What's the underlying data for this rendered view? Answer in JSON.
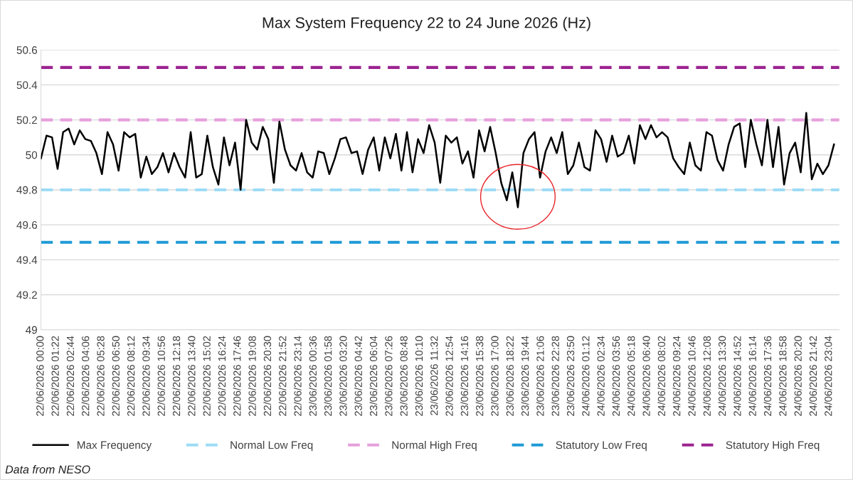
{
  "chart_data": {
    "type": "line",
    "title": "Max System Frequency 22 to 24 June 2026 (Hz)",
    "x": [
      "2026-06-22T00:00",
      "2026-06-22T00:30",
      "2026-06-22T01:00",
      "2026-06-22T01:30",
      "2026-06-22T02:00",
      "2026-06-22T02:30",
      "2026-06-22T03:00",
      "2026-06-22T03:30",
      "2026-06-22T04:00",
      "2026-06-22T04:30",
      "2026-06-22T05:00",
      "2026-06-22T05:30",
      "2026-06-22T06:00",
      "2026-06-22T06:30",
      "2026-06-22T07:00",
      "2026-06-22T07:30",
      "2026-06-22T08:00",
      "2026-06-22T08:30",
      "2026-06-22T09:00",
      "2026-06-22T09:30",
      "2026-06-22T10:00",
      "2026-06-22T10:30",
      "2026-06-22T11:00",
      "2026-06-22T11:30",
      "2026-06-22T12:00",
      "2026-06-22T12:30",
      "2026-06-22T13:00",
      "2026-06-22T13:30",
      "2026-06-22T14:00",
      "2026-06-22T14:30",
      "2026-06-22T15:00",
      "2026-06-22T15:30",
      "2026-06-22T16:00",
      "2026-06-22T16:30",
      "2026-06-22T17:00",
      "2026-06-22T17:30",
      "2026-06-22T18:00",
      "2026-06-22T18:30",
      "2026-06-22T19:00",
      "2026-06-22T19:30",
      "2026-06-22T20:00",
      "2026-06-22T20:30",
      "2026-06-22T21:00",
      "2026-06-22T21:30",
      "2026-06-22T22:00",
      "2026-06-22T22:30",
      "2026-06-22T23:00",
      "2026-06-22T23:30",
      "2026-06-23T00:00",
      "2026-06-23T00:30",
      "2026-06-23T01:00",
      "2026-06-23T01:30",
      "2026-06-23T02:00",
      "2026-06-23T02:30",
      "2026-06-23T03:00",
      "2026-06-23T03:30",
      "2026-06-23T04:00",
      "2026-06-23T04:30",
      "2026-06-23T05:00",
      "2026-06-23T05:30",
      "2026-06-23T06:00",
      "2026-06-23T06:30",
      "2026-06-23T07:00",
      "2026-06-23T07:30",
      "2026-06-23T08:00",
      "2026-06-23T08:30",
      "2026-06-23T09:00",
      "2026-06-23T09:30",
      "2026-06-23T10:00",
      "2026-06-23T10:30",
      "2026-06-23T11:00",
      "2026-06-23T11:30",
      "2026-06-23T12:00",
      "2026-06-23T12:30",
      "2026-06-23T13:00",
      "2026-06-23T13:30",
      "2026-06-23T14:00",
      "2026-06-23T14:30",
      "2026-06-23T15:00",
      "2026-06-23T15:30",
      "2026-06-23T16:00",
      "2026-06-23T16:30",
      "2026-06-23T17:00",
      "2026-06-23T17:30",
      "2026-06-23T18:00",
      "2026-06-23T18:30",
      "2026-06-23T19:00",
      "2026-06-23T19:30",
      "2026-06-23T20:00",
      "2026-06-23T20:30",
      "2026-06-23T21:00",
      "2026-06-23T21:30",
      "2026-06-23T22:00",
      "2026-06-23T22:30",
      "2026-06-23T23:00",
      "2026-06-23T23:30",
      "2026-06-24T00:00",
      "2026-06-24T00:30",
      "2026-06-24T01:00",
      "2026-06-24T01:30",
      "2026-06-24T02:00",
      "2026-06-24T02:30",
      "2026-06-24T03:00",
      "2026-06-24T03:30",
      "2026-06-24T04:00",
      "2026-06-24T04:30",
      "2026-06-24T05:00",
      "2026-06-24T05:30",
      "2026-06-24T06:00",
      "2026-06-24T06:30",
      "2026-06-24T07:00",
      "2026-06-24T07:30",
      "2026-06-24T08:00",
      "2026-06-24T08:30",
      "2026-06-24T09:00",
      "2026-06-24T09:30",
      "2026-06-24T10:00",
      "2026-06-24T10:30",
      "2026-06-24T11:00",
      "2026-06-24T11:30",
      "2026-06-24T12:00",
      "2026-06-24T12:30",
      "2026-06-24T13:00",
      "2026-06-24T13:30",
      "2026-06-24T14:00",
      "2026-06-24T14:30",
      "2026-06-24T15:00",
      "2026-06-24T15:30",
      "2026-06-24T16:00",
      "2026-06-24T16:30",
      "2026-06-24T17:00",
      "2026-06-24T17:30",
      "2026-06-24T18:00",
      "2026-06-24T18:30",
      "2026-06-24T19:00",
      "2026-06-24T19:30",
      "2026-06-24T20:00",
      "2026-06-24T20:30",
      "2026-06-24T21:00",
      "2026-06-24T21:30",
      "2026-06-24T22:00",
      "2026-06-24T22:30",
      "2026-06-24T23:00",
      "2026-06-24T23:30"
    ],
    "series": [
      {
        "name": "Max Frequency",
        "color": "#000000",
        "values": [
          49.98,
          50.11,
          50.1,
          49.92,
          50.13,
          50.15,
          50.06,
          50.14,
          50.09,
          50.08,
          50.01,
          49.89,
          50.13,
          50.06,
          49.91,
          50.13,
          50.1,
          50.12,
          49.87,
          49.99,
          49.89,
          49.93,
          50.01,
          49.9,
          50.01,
          49.93,
          49.87,
          50.13,
          49.87,
          49.89,
          50.11,
          49.93,
          49.83,
          50.1,
          49.94,
          50.07,
          49.8,
          50.2,
          50.07,
          50.03,
          50.16,
          50.09,
          49.84,
          50.19,
          50.03,
          49.94,
          49.91,
          50.01,
          49.9,
          49.87,
          50.02,
          50.01,
          49.89,
          49.98,
          50.09,
          50.1,
          50.01,
          50.02,
          49.89,
          50.03,
          50.1,
          49.91,
          50.1,
          49.98,
          50.12,
          49.91,
          50.13,
          49.9,
          50.09,
          50.01,
          50.17,
          50.07,
          49.84,
          50.11,
          50.07,
          50.1,
          49.95,
          50.02,
          49.87,
          50.14,
          50.02,
          50.16,
          50.01,
          49.84,
          49.74,
          49.9,
          49.7,
          50.01,
          50.09,
          50.13,
          49.87,
          50.02,
          50.1,
          50.01,
          50.13,
          49.89,
          49.94,
          50.07,
          49.93,
          49.91,
          50.14,
          50.09,
          49.96,
          50.11,
          49.99,
          50.01,
          50.11,
          49.95,
          50.17,
          50.09,
          50.17,
          50.1,
          50.13,
          50.1,
          49.98,
          49.93,
          49.89,
          50.07,
          49.94,
          49.91,
          50.13,
          50.11,
          49.97,
          49.91,
          50.06,
          50.16,
          50.18,
          49.93,
          50.2,
          50.06,
          49.94,
          50.2,
          49.93,
          50.16,
          49.83,
          50.01,
          50.07,
          49.9,
          50.24,
          49.86,
          49.95,
          49.89,
          49.94,
          50.06
        ]
      }
    ],
    "ref_lines": [
      {
        "axis": "y",
        "value": 49.8,
        "label": "Normal Low Freq",
        "color": "#9ddcf5",
        "line_style": "dashed"
      },
      {
        "axis": "y",
        "value": 50.2,
        "label": "Normal High Freq",
        "color": "#e6a0dc",
        "line_style": "dashed"
      },
      {
        "axis": "y",
        "value": 49.5,
        "label": "Statutory Low Freq",
        "color": "#1f9ad6",
        "line_style": "dashed"
      },
      {
        "axis": "y",
        "value": 50.5,
        "label": "Statutory High Freq",
        "color": "#9c2391",
        "line_style": "dashed"
      }
    ],
    "ylim": [
      49,
      50.6
    ],
    "yticks": [
      49,
      49.2,
      49.4,
      49.6,
      49.8,
      50,
      50.2,
      50.4,
      50.6
    ],
    "xlim": [
      "2026-06-22T00:00",
      "2026-06-24T23:59"
    ],
    "xticks": [
      {
        "value": "2026-06-22T00:00",
        "label": "22/06/2026 00:00"
      },
      {
        "value": "2026-06-22T01:22",
        "label": "22/06/2026 01:22"
      },
      {
        "value": "2026-06-22T02:44",
        "label": "22/06/2026 02:44"
      },
      {
        "value": "2026-06-22T04:06",
        "label": "22/06/2026 04:06"
      },
      {
        "value": "2026-06-22T05:28",
        "label": "22/06/2026 05:28"
      },
      {
        "value": "2026-06-22T06:50",
        "label": "22/06/2026 06:50"
      },
      {
        "value": "2026-06-22T08:12",
        "label": "22/06/2026 08:12"
      },
      {
        "value": "2026-06-22T09:34",
        "label": "22/06/2026 09:34"
      },
      {
        "value": "2026-06-22T10:56",
        "label": "22/06/2026 10:56"
      },
      {
        "value": "2026-06-22T12:18",
        "label": "22/06/2026 12:18"
      },
      {
        "value": "2026-06-22T13:40",
        "label": "22/06/2026 13:40"
      },
      {
        "value": "2026-06-22T15:02",
        "label": "22/06/2026 15:02"
      },
      {
        "value": "2026-06-22T16:24",
        "label": "22/06/2026 16:24"
      },
      {
        "value": "2026-06-22T17:46",
        "label": "22/06/2026 17:46"
      },
      {
        "value": "2026-06-22T19:08",
        "label": "22/06/2026 19:08"
      },
      {
        "value": "2026-06-22T20:30",
        "label": "22/06/2026 20:30"
      },
      {
        "value": "2026-06-22T21:52",
        "label": "22/06/2026 21:52"
      },
      {
        "value": "2026-06-22T23:14",
        "label": "22/06/2026 23:14"
      },
      {
        "value": "2026-06-23T00:36",
        "label": "23/06/2026 00:36"
      },
      {
        "value": "2026-06-23T01:58",
        "label": "23/06/2026 01:58"
      },
      {
        "value": "2026-06-23T03:20",
        "label": "23/06/2026 03:20"
      },
      {
        "value": "2026-06-23T04:42",
        "label": "23/06/2026 04:42"
      },
      {
        "value": "2026-06-23T06:04",
        "label": "23/06/2026 06:04"
      },
      {
        "value": "2026-06-23T07:26",
        "label": "23/06/2026 07:26"
      },
      {
        "value": "2026-06-23T08:48",
        "label": "23/06/2026 08:48"
      },
      {
        "value": "2026-06-23T10:10",
        "label": "23/06/2026 10:10"
      },
      {
        "value": "2026-06-23T11:32",
        "label": "23/06/2026 11:32"
      },
      {
        "value": "2026-06-23T12:54",
        "label": "23/06/2026 12:54"
      },
      {
        "value": "2026-06-23T14:16",
        "label": "23/06/2026 14:16"
      },
      {
        "value": "2026-06-23T15:38",
        "label": "23/06/2026 15:38"
      },
      {
        "value": "2026-06-23T17:00",
        "label": "23/06/2026 17:00"
      },
      {
        "value": "2026-06-23T18:22",
        "label": "23/06/2026 18:22"
      },
      {
        "value": "2026-06-23T19:44",
        "label": "23/06/2026 19:44"
      },
      {
        "value": "2026-06-23T21:06",
        "label": "23/06/2026 21:06"
      },
      {
        "value": "2026-06-23T22:28",
        "label": "23/06/2026 22:28"
      },
      {
        "value": "2026-06-23T23:50",
        "label": "23/06/2026 23:50"
      },
      {
        "value": "2026-06-24T01:12",
        "label": "24/06/2026 01:12"
      },
      {
        "value": "2026-06-24T02:34",
        "label": "24/06/2026 02:34"
      },
      {
        "value": "2026-06-24T03:56",
        "label": "24/06/2026 03:56"
      },
      {
        "value": "2026-06-24T05:18",
        "label": "24/06/2026 05:18"
      },
      {
        "value": "2026-06-24T06:40",
        "label": "24/06/2026 06:40"
      },
      {
        "value": "2026-06-24T08:02",
        "label": "24/06/2026 08:02"
      },
      {
        "value": "2026-06-24T09:24",
        "label": "24/06/2026 09:24"
      },
      {
        "value": "2026-06-24T10:46",
        "label": "24/06/2026 10:46"
      },
      {
        "value": "2026-06-24T12:08",
        "label": "24/06/2026 12:08"
      },
      {
        "value": "2026-06-24T13:30",
        "label": "24/06/2026 13:30"
      },
      {
        "value": "2026-06-24T14:52",
        "label": "24/06/2026 14:52"
      },
      {
        "value": "2026-06-24T16:14",
        "label": "24/06/2026 16:14"
      },
      {
        "value": "2026-06-24T17:36",
        "label": "24/06/2026 17:36"
      },
      {
        "value": "2026-06-24T18:58",
        "label": "24/06/2026 18:58"
      },
      {
        "value": "2026-06-24T20:20",
        "label": "24/06/2026 20:20"
      },
      {
        "value": "2026-06-24T21:42",
        "label": "24/06/2026 21:42"
      },
      {
        "value": "2026-06-24T23:04",
        "label": "24/06/2026 23:04"
      }
    ],
    "grid": "y",
    "legend": "bottom",
    "marker": "none",
    "line_style": "solid",
    "annotations": [
      "Data from NESO"
    ]
  }
}
